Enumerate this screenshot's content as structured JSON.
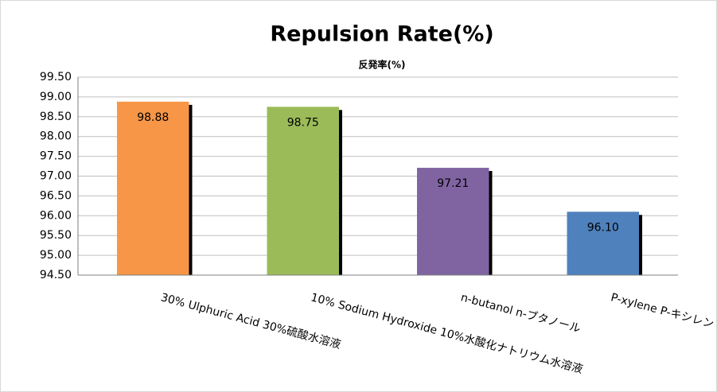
{
  "chart_data": {
    "type": "bar",
    "title": "Repulsion Rate(%)",
    "subtitle": "反発率(%)",
    "categories": [
      "30% Ulphuric Acid 30%硫酸水溶液",
      "10% Sodium Hydroxide 10%水酸化ナトリウム水溶液",
      "n-butanol n-ブタノール",
      "P-xylene P-キシレン"
    ],
    "values": [
      98.88,
      98.75,
      97.21,
      96.1
    ],
    "value_labels": [
      "98.88",
      "98.75",
      "97.21",
      "96.10"
    ],
    "colors": [
      "#f79646",
      "#9bbb59",
      "#8064a2",
      "#4f81bd"
    ],
    "ylim": [
      94.5,
      99.5
    ],
    "yticks": [
      {
        "value": 94.5,
        "label": "94.50"
      },
      {
        "value": 95,
        "label": "95.00"
      },
      {
        "value": 95.5,
        "label": "95.50"
      },
      {
        "value": 96,
        "label": "96.00"
      },
      {
        "value": 96.5,
        "label": "96.50"
      },
      {
        "value": 97,
        "label": "97.00"
      },
      {
        "value": 97.5,
        "label": "97.50"
      },
      {
        "value": 98,
        "label": "98.00"
      },
      {
        "value": 98.5,
        "label": "98.50"
      },
      {
        "value": 99,
        "label": "99.00"
      },
      {
        "value": 99.5,
        "label": "99.50"
      }
    ],
    "grid": true
  }
}
